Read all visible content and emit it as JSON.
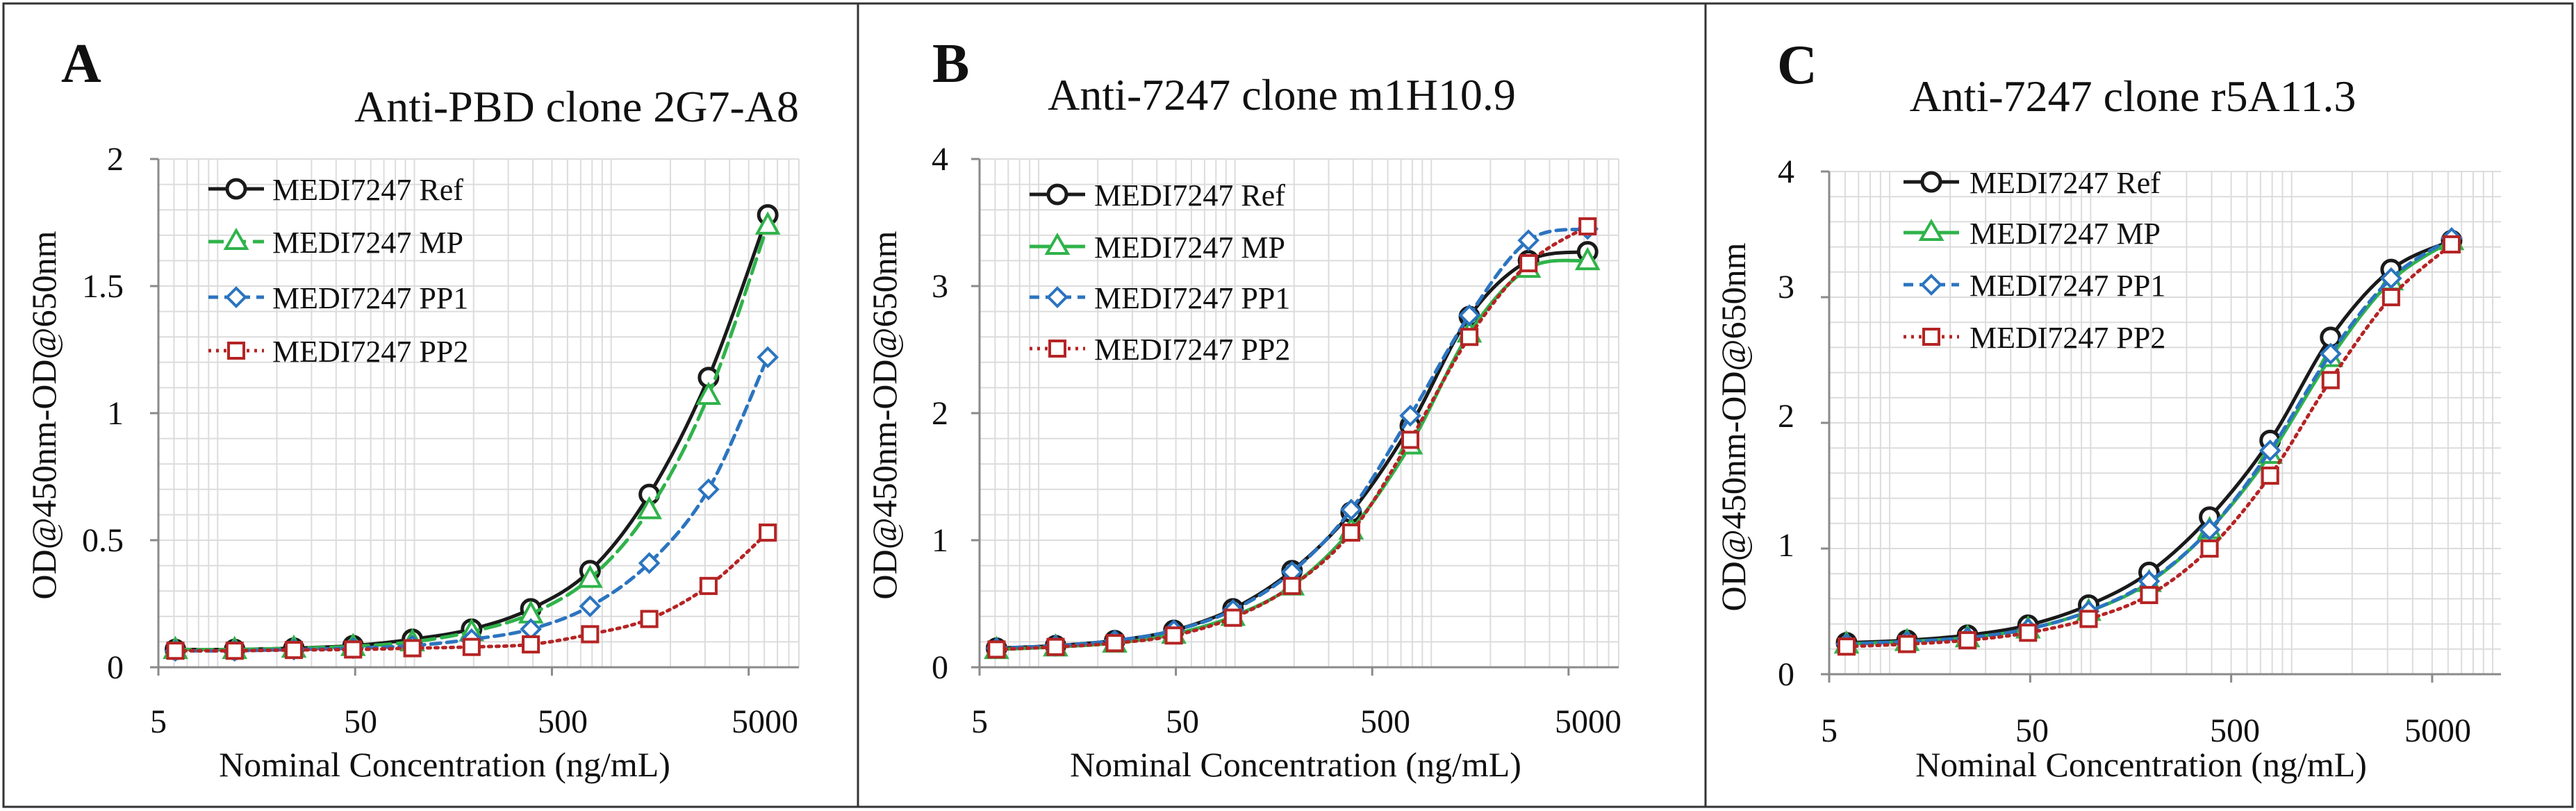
{
  "figure": {
    "charts": [
      {
        "panel_letter": "A",
        "title": "Anti-PBD clone 2G7-A8",
        "ylabel": "OD@450nm-OD@650nm",
        "xlabel": "Nominal Concentration (ng/mL)",
        "y_tick_labels": [
          "0",
          "0.5",
          "1",
          "1.5",
          "2"
        ],
        "x_tick_labels": [
          "5",
          "50",
          "500",
          "5000"
        ],
        "legend": [
          "MEDI7247 Ref",
          "MEDI7247 MP",
          "MEDI7247 PP1",
          "MEDI7247 PP2"
        ]
      },
      {
        "panel_letter": "B",
        "title": "Anti-7247 clone m1H10.9",
        "ylabel": "OD@450nm-OD@650nm",
        "xlabel": "Nominal Concentration (ng/mL)",
        "y_tick_labels": [
          "0",
          "1",
          "2",
          "3",
          "4"
        ],
        "x_tick_labels": [
          "5",
          "50",
          "500",
          "5000"
        ],
        "legend": [
          "MEDI7247 Ref",
          "MEDI7247 MP",
          "MEDI7247 PP1",
          "MEDI7247 PP2"
        ]
      },
      {
        "panel_letter": "C",
        "title": "Anti-7247 clone r5A11.3",
        "ylabel": "OD@450nm-OD@650nm",
        "xlabel": "Nominal Concentration (ng/mL)",
        "y_tick_labels": [
          "0",
          "1",
          "2",
          "3",
          "4"
        ],
        "x_tick_labels": [
          "5",
          "50",
          "500",
          "5000"
        ],
        "legend": [
          "MEDI7247 Ref",
          "MEDI7247 MP",
          "MEDI7247 PP1",
          "MEDI7247 PP2"
        ]
      }
    ]
  },
  "colors": {
    "ref": "#1a1a1a",
    "mp": "#2fb34a",
    "pp1": "#2b74bf",
    "pp2": "#b52424",
    "grid": "#dcdcdc",
    "axis": "#8a8a8a",
    "frame": "#333333"
  },
  "chart_data": [
    {
      "type": "line",
      "panel": "A",
      "title": "Anti-PBD clone 2G7-A8",
      "xlabel": "Nominal Concentration (ng/mL)",
      "ylabel": "OD@450nm-OD@650nm",
      "x_scale": "log",
      "xlim": [
        5,
        10000
      ],
      "ylim": [
        0,
        2
      ],
      "x_ticks": [
        5,
        50,
        500,
        5000
      ],
      "y_ticks": [
        0,
        0.5,
        1,
        1.5,
        2
      ],
      "grid": true,
      "legend_position": "top-left",
      "x": [
        6.1,
        12.2,
        24.4,
        48.8,
        97.7,
        195.3,
        390.6,
        781.3,
        1562.5,
        3125,
        6250
      ],
      "series": [
        {
          "name": "MEDI7247 Ref",
          "marker": "circle",
          "line": "solid",
          "values": [
            0.07,
            0.07,
            0.075,
            0.085,
            0.11,
            0.15,
            0.23,
            0.38,
            0.68,
            1.14,
            1.78
          ]
        },
        {
          "name": "MEDI7247 MP",
          "marker": "triangle",
          "line": "dashed",
          "values": [
            0.07,
            0.07,
            0.075,
            0.082,
            0.1,
            0.14,
            0.21,
            0.35,
            0.62,
            1.07,
            1.74
          ]
        },
        {
          "name": "MEDI7247 PP1",
          "marker": "diamond",
          "line": "dashed",
          "values": [
            0.065,
            0.065,
            0.07,
            0.075,
            0.085,
            0.11,
            0.15,
            0.24,
            0.41,
            0.7,
            1.22
          ]
        },
        {
          "name": "MEDI7247 PP2",
          "marker": "square",
          "line": "dotted",
          "values": [
            0.065,
            0.065,
            0.068,
            0.07,
            0.075,
            0.08,
            0.09,
            0.13,
            0.19,
            0.32,
            0.53
          ]
        }
      ]
    },
    {
      "type": "line",
      "panel": "B",
      "title": "Anti-7247 clone m1H10.9",
      "xlabel": "Nominal Concentration (ng/mL)",
      "ylabel": "OD@450nm-OD@650nm",
      "x_scale": "log",
      "xlim": [
        5,
        10000
      ],
      "ylim": [
        0,
        4
      ],
      "x_ticks": [
        5,
        50,
        500,
        5000
      ],
      "y_ticks": [
        0,
        1,
        2,
        3,
        4
      ],
      "grid": true,
      "legend_position": "top-left",
      "x": [
        6.1,
        12.2,
        24.4,
        48.8,
        97.7,
        195.3,
        390.6,
        781.3,
        1562.5,
        3125,
        6250
      ],
      "series": [
        {
          "name": "MEDI7247 Ref",
          "marker": "circle",
          "line": "solid",
          "values": [
            0.15,
            0.17,
            0.21,
            0.29,
            0.46,
            0.76,
            1.22,
            1.9,
            2.76,
            3.2,
            3.27
          ]
        },
        {
          "name": "MEDI7247 MP",
          "marker": "triangle",
          "line": "solid",
          "values": [
            0.14,
            0.16,
            0.19,
            0.26,
            0.4,
            0.64,
            1.08,
            1.75,
            2.63,
            3.14,
            3.2
          ]
        },
        {
          "name": "MEDI7247 PP1",
          "marker": "diamond",
          "line": "dashed",
          "values": [
            0.15,
            0.17,
            0.21,
            0.29,
            0.45,
            0.75,
            1.24,
            1.98,
            2.77,
            3.36,
            3.45
          ]
        },
        {
          "name": "MEDI7247 PP2",
          "marker": "square",
          "line": "dotted",
          "values": [
            0.14,
            0.16,
            0.19,
            0.25,
            0.39,
            0.64,
            1.06,
            1.79,
            2.6,
            3.18,
            3.47
          ]
        }
      ]
    },
    {
      "type": "line",
      "panel": "C",
      "title": "Anti-7247 clone r5A11.3",
      "xlabel": "Nominal Concentration (ng/mL)",
      "ylabel": "OD@450nm-OD@650nm",
      "x_scale": "log",
      "xlim": [
        5,
        10000
      ],
      "ylim": [
        0,
        4
      ],
      "x_ticks": [
        5,
        50,
        500,
        5000
      ],
      "y_ticks": [
        0,
        1,
        2,
        3,
        4
      ],
      "grid": true,
      "legend_position": "top-left",
      "x": [
        6.1,
        12.2,
        24.4,
        48.8,
        97.7,
        195.3,
        390.6,
        781.3,
        1562.5,
        3125,
        6250
      ],
      "series": [
        {
          "name": "MEDI7247 Ref",
          "marker": "circle",
          "line": "solid",
          "values": [
            0.25,
            0.27,
            0.31,
            0.39,
            0.55,
            0.81,
            1.25,
            1.86,
            2.68,
            3.22,
            3.45
          ]
        },
        {
          "name": "MEDI7247 MP",
          "marker": "triangle",
          "line": "solid",
          "values": [
            0.24,
            0.26,
            0.29,
            0.36,
            0.5,
            0.73,
            1.15,
            1.75,
            2.52,
            3.13,
            3.45
          ]
        },
        {
          "name": "MEDI7247 PP1",
          "marker": "diamond",
          "line": "dashed",
          "values": [
            0.24,
            0.26,
            0.29,
            0.36,
            0.5,
            0.74,
            1.15,
            1.78,
            2.55,
            3.15,
            3.47
          ]
        },
        {
          "name": "MEDI7247 PP2",
          "marker": "square",
          "line": "dotted",
          "values": [
            0.22,
            0.24,
            0.27,
            0.33,
            0.44,
            0.63,
            1.0,
            1.58,
            2.34,
            3.0,
            3.42
          ]
        }
      ]
    }
  ]
}
